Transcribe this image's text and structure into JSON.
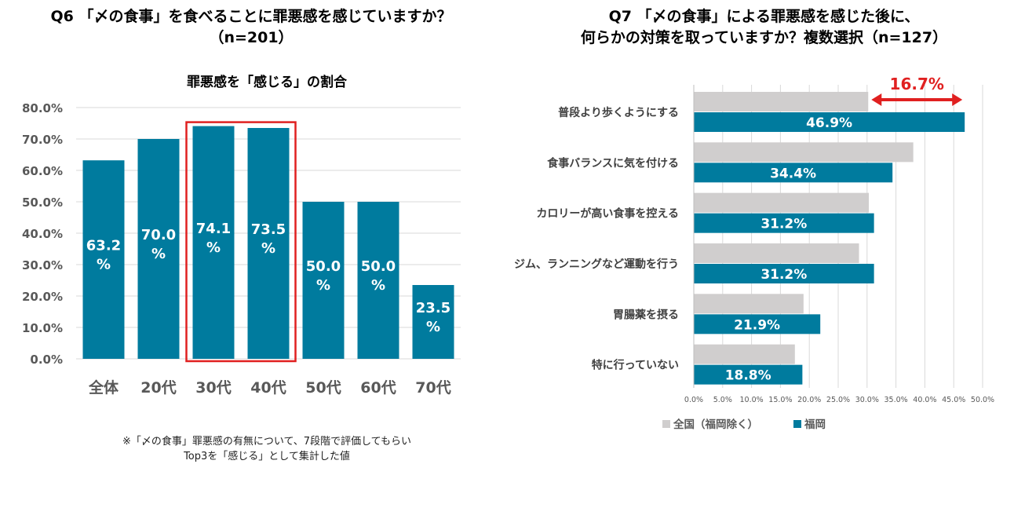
{
  "q6": {
    "title_line1": "Q6 「〆の食事」を食べることに罪悪感を感じていますか？",
    "title_line2": "（n=201）",
    "subtitle": "罪悪感を「感じる」の割合",
    "note_line1": "※「〆の食事」罪悪感の有無について、7段階で評価してもらい",
    "note_line2": "Top3を「感じる」として集計した値"
  },
  "q7": {
    "title_line1": "Q7 「〆の食事」による罪悪感を感じた後に、",
    "title_line2": "何らかの対策を取っていますか？複数選択（n=127）",
    "highlight_label": "16.7%"
  },
  "colors": {
    "teal": "#007B9E",
    "gray": "#D0CECE",
    "red": "#E02020",
    "grid": "#D9D9D9"
  },
  "chart_data": [
    {
      "type": "bar",
      "title": "罪悪感を「感じる」の割合",
      "categories": [
        "全体",
        "20代",
        "30代",
        "40代",
        "50代",
        "60代",
        "70代"
      ],
      "values": [
        63.2,
        70.0,
        74.1,
        73.5,
        50.0,
        50.0,
        23.5
      ],
      "labels": [
        "63.2\n%",
        "70.0\n%",
        "74.1\n%",
        "73.5\n%",
        "50.0\n%",
        "50.0\n%",
        "23.5\n%"
      ],
      "ylim": [
        0,
        80
      ],
      "yticks": [
        "0.0%",
        "10.0%",
        "20.0%",
        "30.0%",
        "40.0%",
        "50.0%",
        "60.0%",
        "70.0%",
        "80.0%"
      ],
      "highlighted_categories": [
        "30代",
        "40代"
      ],
      "xlabel": "",
      "ylabel": ""
    },
    {
      "type": "bar",
      "orientation": "horizontal",
      "categories": [
        "普段より歩くようにする",
        "食事バランスに気を付ける",
        "カロリーが高い食事を控える",
        "ジム、ランニングなど運動を行う",
        "胃腸薬を摂る",
        "特に行っていない"
      ],
      "series": [
        {
          "name": "全国（福岡除く）",
          "values": [
            30.2,
            38.0,
            30.3,
            28.6,
            19.0,
            17.5
          ]
        },
        {
          "name": "福岡",
          "values": [
            46.9,
            34.4,
            31.2,
            31.2,
            21.9,
            18.8
          ],
          "labels": [
            "46.9%",
            "34.4%",
            "31.2%",
            "31.2%",
            "21.9%",
            "18.8%"
          ]
        }
      ],
      "xlim": [
        0,
        50
      ],
      "xticks": [
        "0.0%",
        "5.0%",
        "10.0%",
        "15.0%",
        "20.0%",
        "25.0%",
        "30.0%",
        "35.0%",
        "40.0%",
        "45.0%",
        "50.0%"
      ],
      "annotation": {
        "category": "普段より歩くようにする",
        "text": "16.7%"
      },
      "legend": "bottom-left"
    }
  ]
}
